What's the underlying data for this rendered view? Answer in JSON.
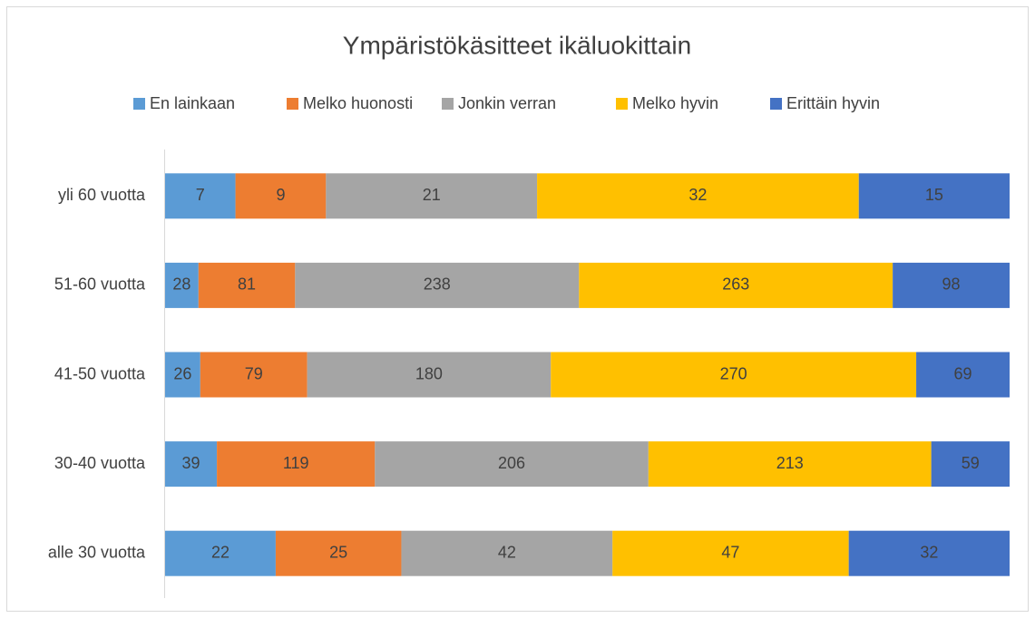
{
  "chart_data": {
    "type": "bar",
    "orientation": "horizontal",
    "stacking": "percent",
    "title": "Ympäristökäsitteet ikäluokittain",
    "categories": [
      "yli 60 vuotta",
      "51-60 vuotta",
      "41-50 vuotta",
      "30-40 vuotta",
      "alle 30 vuotta"
    ],
    "series": [
      {
        "name": "En lainkaan",
        "color": "#5b9bd5",
        "values": [
          7,
          28,
          26,
          39,
          22
        ]
      },
      {
        "name": "Melko huonosti",
        "color": "#ed7d31",
        "values": [
          9,
          81,
          79,
          119,
          25
        ]
      },
      {
        "name": "Jonkin verran",
        "color": "#a5a5a5",
        "values": [
          21,
          238,
          180,
          206,
          42
        ]
      },
      {
        "name": "Melko hyvin",
        "color": "#ffc000",
        "values": [
          32,
          263,
          270,
          213,
          47
        ]
      },
      {
        "name": "Erittäin hyvin",
        "color": "#4472c4",
        "values": [
          15,
          98,
          69,
          59,
          32
        ]
      }
    ],
    "legend": "top",
    "data_labels": true
  }
}
